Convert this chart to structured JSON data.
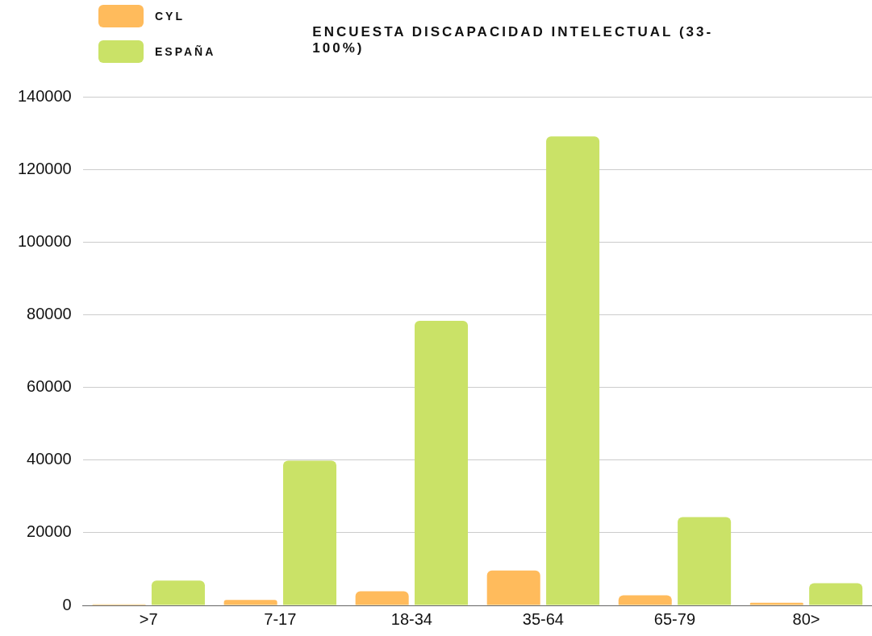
{
  "chart_data": {
    "type": "bar",
    "title": "ENCUESTA DISCAPACIDAD INTELECTUAL (33-100%)",
    "categories": [
      ">7",
      "7-17",
      "18-34",
      "35-64",
      "65-79",
      "80>"
    ],
    "series": [
      {
        "name": "CYL",
        "color": "#ffbb5c",
        "values": [
          300,
          1500,
          3900,
          9600,
          2800,
          700
        ]
      },
      {
        "name": "ESPAÑA",
        "color": "#cae267",
        "values": [
          6800,
          39800,
          78300,
          129100,
          24300,
          6100
        ]
      }
    ],
    "ylim": [
      0,
      140000
    ],
    "yticks": [
      0,
      20000,
      40000,
      60000,
      80000,
      100000,
      120000,
      140000
    ],
    "grid": "y",
    "legend": "top left"
  }
}
